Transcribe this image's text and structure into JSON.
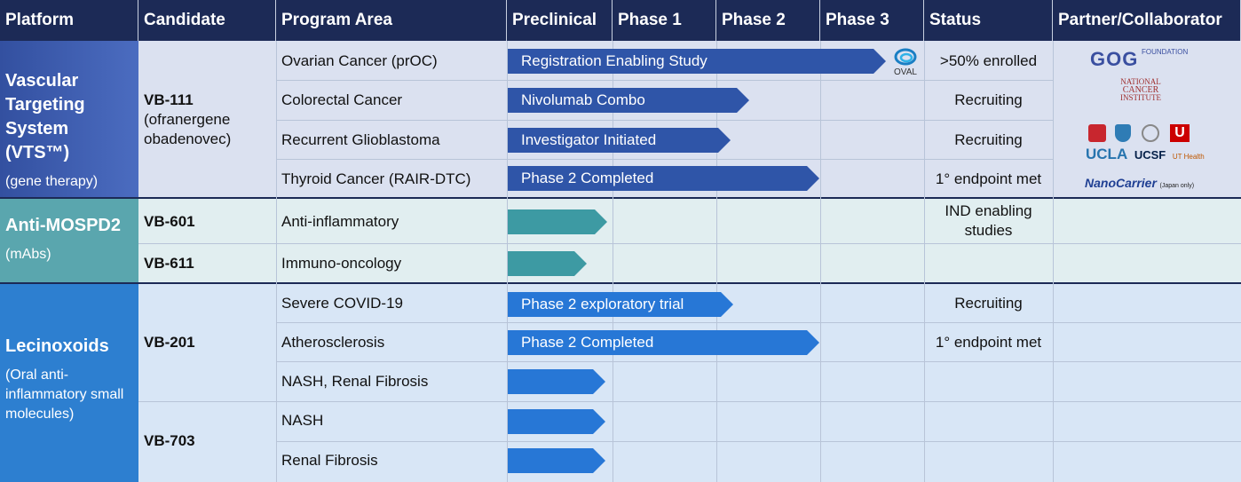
{
  "headers": {
    "platform": "Platform",
    "candidate": "Candidate",
    "program_area": "Program Area",
    "preclinical": "Preclinical",
    "phase1": "Phase 1",
    "phase2": "Phase 2",
    "phase3": "Phase 3",
    "status": "Status",
    "partner": "Partner/Collaborator"
  },
  "colors": {
    "header_bg": "#1c2a56",
    "vts_platform": "#3a58a8",
    "mospd_platform": "#5aa6ae",
    "lecino_platform": "#2d7fd0",
    "vts_row": "#dbe1f0",
    "mospd_row": "#e1eef0",
    "lecino_row": "#d8e6f6"
  },
  "platforms": {
    "vts": {
      "title": "Vascular Targeting System (VTS™)",
      "subtitle": "(gene therapy)"
    },
    "mospd": {
      "title": "Anti-MOSPD2",
      "subtitle": "(mAbs)"
    },
    "lecino": {
      "title": "Lecinoxoids",
      "subtitle": "(Oral anti-inflammatory small molecules)"
    }
  },
  "candidates": {
    "vb111_name": "VB-111",
    "vb111_detail": "(ofranergene obadenovec)",
    "vb601": "VB-601",
    "vb611": "VB-611",
    "vb201": "VB-201",
    "vb703": "VB-703"
  },
  "programs": {
    "ovarian": "Ovarian Cancer (prOC)",
    "colorectal": "Colorectal Cancer",
    "glioblastoma": "Recurrent Glioblastoma",
    "thyroid": "Thyroid Cancer (RAIR-DTC)",
    "anti_inflammatory": "Anti-inflammatory",
    "immuno_oncology": "Immuno-oncology",
    "covid": "Severe COVID-19",
    "athero": "Atherosclerosis",
    "nash_renal": "NASH, Renal Fibrosis",
    "nash": "NASH",
    "renal": "Renal Fibrosis"
  },
  "bars": {
    "ovarian": "Registration Enabling Study",
    "colorectal": "Nivolumab Combo",
    "glioblastoma": "Investigator Initiated",
    "thyroid": "Phase 2 Completed",
    "covid": "Phase 2 exploratory trial",
    "athero": "Phase 2 Completed"
  },
  "status": {
    "ovarian": ">50% enrolled",
    "colorectal": "Recruiting",
    "glioblastoma": "Recruiting",
    "thyroid": "1° endpoint met",
    "mospd": "IND enabling studies",
    "covid": "Recruiting",
    "athero": "1° endpoint met"
  },
  "partners": {
    "oval": "OVAL",
    "gog": "GOG",
    "gog_foundation": "FOUNDATION",
    "nci_line1": "NATIONAL",
    "nci_line2": "CANCER",
    "nci_line3": "INSTITUTE",
    "ucla": "UCLA",
    "ucsf": "UCSF",
    "ut_health": "UT Health",
    "nanocarrier": "NanoCarrier",
    "nanocarrier_note": "(Japan only)"
  }
}
